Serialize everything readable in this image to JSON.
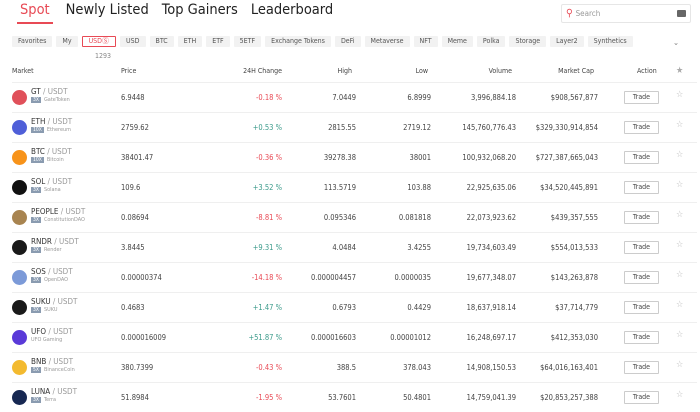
{
  "tabs": [
    "Spot",
    "Newly Listed",
    "Top Gainers",
    "Leaderboard"
  ],
  "search": {
    "placeholder": "Search"
  },
  "chips": [
    "Favorites",
    "My",
    "USDⓈ",
    "USD",
    "BTC",
    "ETH",
    "ETF",
    "5ETF",
    "Exchange Tokens",
    "DeFi",
    "Metaverse",
    "NFT",
    "Meme",
    "Polka",
    "Storage",
    "Layer2",
    "Synthetics"
  ],
  "active_chip": "USDⓈ",
  "usds_count": "1293",
  "columns": [
    "Market",
    "Price",
    "24H Change",
    "High",
    "Low",
    "Volume",
    "Market Cap",
    "Action"
  ],
  "colors": {
    "accent": "#e84a55",
    "up": "#3a9a8a",
    "down": "#e84a55"
  },
  "trade_label": "Trade",
  "rows": [
    {
      "base": "GT",
      "quote": "/ USDT",
      "lev": "3X",
      "name": "GateToken",
      "price": "6.9448",
      "change": "-0.18 %",
      "high": "7.0449",
      "low": "6.8999",
      "volume": "3,996,884.18",
      "mcap": "$908,567,877",
      "color": "#e0505a"
    },
    {
      "base": "ETH",
      "quote": "/ USDT",
      "lev": "10X",
      "name": "Ethereum",
      "price": "2759.62",
      "change": "+0.53 %",
      "high": "2815.55",
      "low": "2719.12",
      "volume": "145,760,776.43",
      "mcap": "$329,330,914,854",
      "color": "#4f5fd8"
    },
    {
      "base": "BTC",
      "quote": "/ USDT",
      "lev": "10X",
      "name": "Bitcoin",
      "price": "38401.47",
      "change": "-0.36 %",
      "high": "39278.38",
      "low": "38001",
      "volume": "100,932,068.20",
      "mcap": "$727,387,665,043",
      "color": "#f7931a"
    },
    {
      "base": "SOL",
      "quote": "/ USDT",
      "lev": "3X",
      "name": "Solana",
      "price": "109.6",
      "change": "+3.52 %",
      "high": "113.5719",
      "low": "103.88",
      "volume": "22,925,635.06",
      "mcap": "$34,520,445,891",
      "color": "#111"
    },
    {
      "base": "PEOPLE",
      "quote": "/ USDT",
      "lev": "3X",
      "name": "ConstitutionDAO",
      "price": "0.08694",
      "change": "-8.81 %",
      "high": "0.095346",
      "low": "0.081818",
      "volume": "22,073,923.62",
      "mcap": "$439,357,555",
      "color": "#a88450"
    },
    {
      "base": "RNDR",
      "quote": "/ USDT",
      "lev": "3X",
      "name": "Render",
      "price": "3.8445",
      "change": "+9.31 %",
      "high": "4.0484",
      "low": "3.4255",
      "volume": "19,734,603.49",
      "mcap": "$554,013,533",
      "color": "#1a1a1a"
    },
    {
      "base": "SOS",
      "quote": "/ USDT",
      "lev": "3X",
      "name": "OpenDAO",
      "price": "0.00000374",
      "change": "-14.18 %",
      "high": "0.000004457",
      "low": "0.0000035",
      "volume": "19,677,348.07",
      "mcap": "$143,263,878",
      "color": "#7c9ad8"
    },
    {
      "base": "SUKU",
      "quote": "/ USDT",
      "lev": "3X",
      "name": "SUKU",
      "price": "0.4683",
      "change": "+1.47 %",
      "high": "0.6793",
      "low": "0.4429",
      "volume": "18,637,918.14",
      "mcap": "$37,714,779",
      "color": "#1a1a1a"
    },
    {
      "base": "UFO",
      "quote": "/ USDT",
      "lev": "",
      "name": "UFO Gaming",
      "price": "0.000016009",
      "change": "+51.87 %",
      "high": "0.000016603",
      "low": "0.00001012",
      "volume": "16,248,697.17",
      "mcap": "$412,353,030",
      "color": "#5a3ad8"
    },
    {
      "base": "BNB",
      "quote": "/ USDT",
      "lev": "5X",
      "name": "BinanceCoin",
      "price": "380.7399",
      "change": "-0.43 %",
      "high": "388.5",
      "low": "378.043",
      "volume": "14,908,150.53",
      "mcap": "$64,016,163,401",
      "color": "#f3ba2f"
    },
    {
      "base": "LUNA",
      "quote": "/ USDT",
      "lev": "3X",
      "name": "Terra",
      "price": "51.8984",
      "change": "-1.95 %",
      "high": "53.7601",
      "low": "50.4801",
      "volume": "14,759,041.39",
      "mcap": "$20,853,257,388",
      "color": "#172852"
    }
  ]
}
